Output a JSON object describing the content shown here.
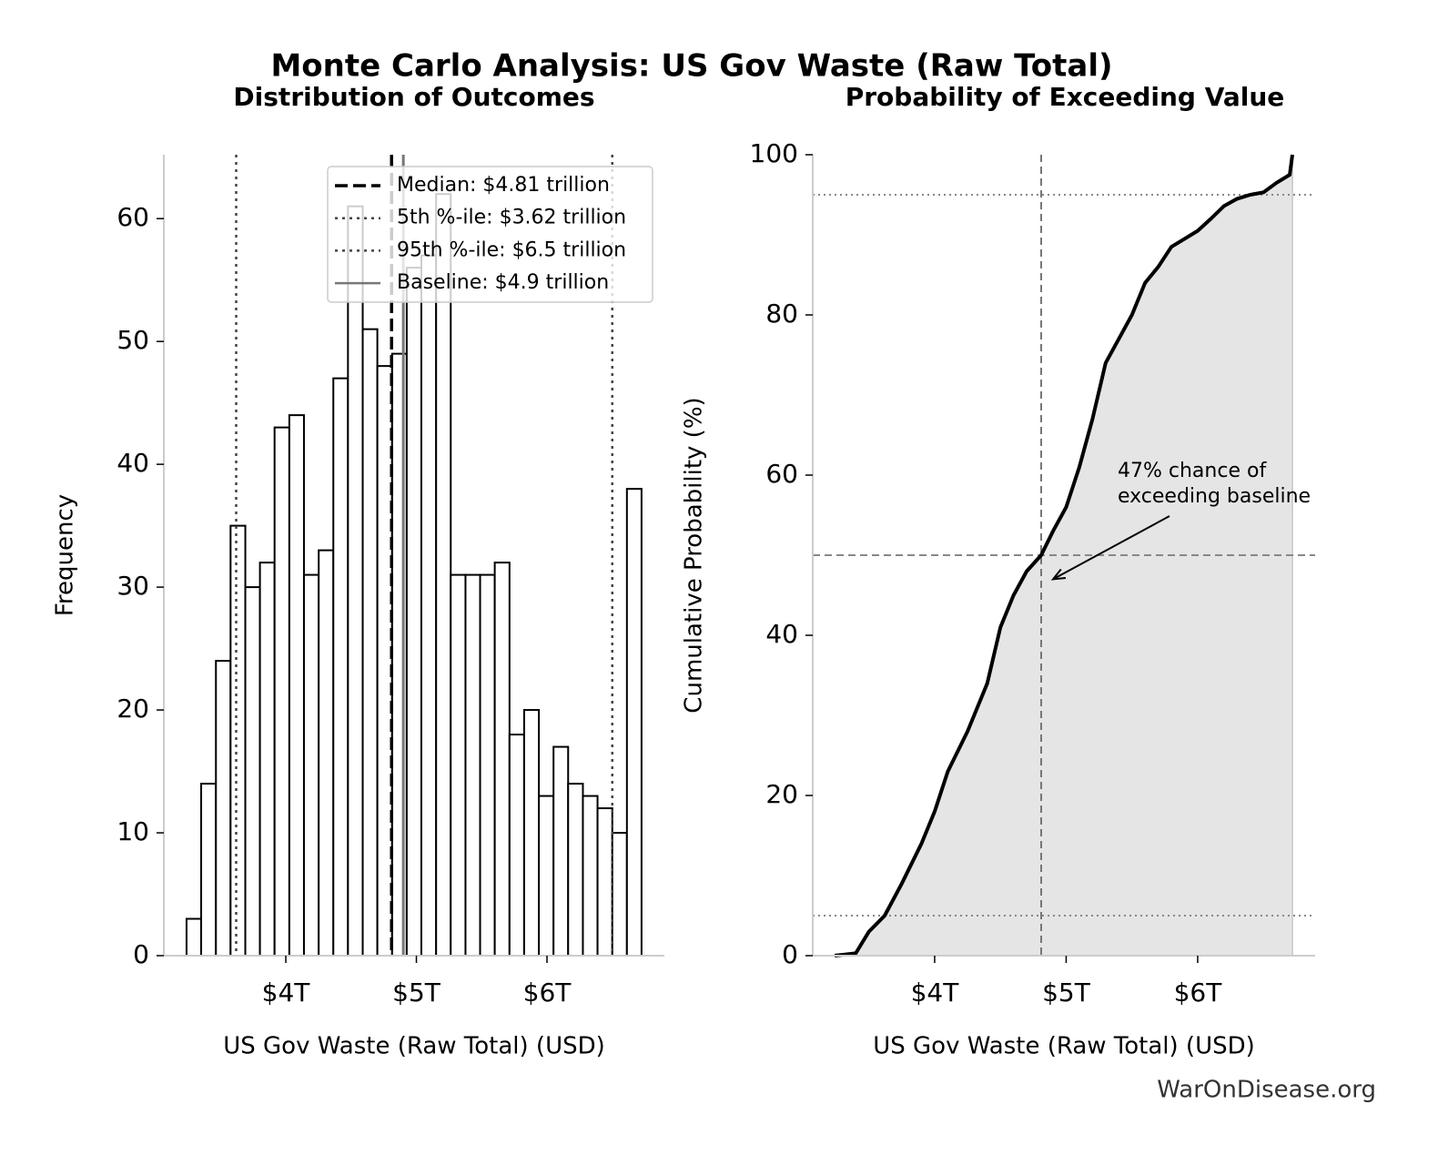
{
  "title": "Monte Carlo Analysis: US Gov Waste (Raw Total)",
  "footer": "WarOnDisease.org",
  "chart_data": [
    {
      "type": "histogram",
      "title": "Distribution of Outcomes",
      "x_label": "US Gov Waste (Raw Total) (USD)",
      "y_label": "Frequency",
      "bins": [
        3.24,
        3.352,
        3.465,
        3.577,
        3.69,
        3.802,
        3.914,
        4.027,
        4.139,
        4.252,
        4.364,
        4.476,
        4.589,
        4.701,
        4.814,
        4.926,
        5.038,
        5.151,
        5.263,
        5.376,
        5.488,
        5.6,
        5.713,
        5.825,
        5.938,
        6.05,
        6.162,
        6.275,
        6.387,
        6.5,
        6.612,
        6.724
      ],
      "values": [
        3,
        14,
        24,
        35,
        30,
        32,
        43,
        44,
        31,
        33,
        47,
        61,
        51,
        48,
        49,
        56,
        57,
        62,
        31,
        31,
        31,
        32,
        18,
        20,
        13,
        17,
        14,
        13,
        12,
        10,
        38
      ],
      "color": "#ffffff",
      "edge_color": "#000000",
      "xlim": [
        3.066,
        6.899
      ],
      "ylim": [
        0,
        65.2
      ],
      "xticks": [
        {
          "value": 4,
          "label": "$4T"
        },
        {
          "value": 5,
          "label": "$5T"
        },
        {
          "value": 6,
          "label": "$6T"
        }
      ],
      "yticks": [
        0,
        10,
        20,
        30,
        40,
        50,
        60
      ],
      "legend": "upper center",
      "reference_lines": [
        {
          "name": "Median: $4.81 trillion",
          "value": 4.81,
          "style": "dashed",
          "color": "#000000"
        },
        {
          "name": "5th %-ile: $3.62 trillion",
          "value": 3.62,
          "style": "dotted",
          "color": "#444444"
        },
        {
          "name": "95th %-ile: $6.5 trillion",
          "value": 6.5,
          "style": "dotted",
          "color": "#444444"
        },
        {
          "name": "Baseline: $4.9 trillion",
          "value": 4.9,
          "style": "solid",
          "color": "#777777"
        }
      ]
    },
    {
      "type": "line",
      "title": "Probability of Exceeding Value",
      "x_label": "US Gov Waste (Raw Total) (USD)",
      "y_label": "Cumulative Probability (%)",
      "x": [
        3.24,
        3.4,
        3.5,
        3.62,
        3.75,
        3.9,
        4.0,
        4.1,
        4.25,
        4.4,
        4.5,
        4.6,
        4.7,
        4.81,
        4.9,
        5.0,
        5.1,
        5.2,
        5.3,
        5.4,
        5.5,
        5.6,
        5.7,
        5.8,
        5.9,
        6.0,
        6.1,
        6.2,
        6.3,
        6.4,
        6.5,
        6.6,
        6.7,
        6.72
      ],
      "values": [
        0,
        0.3,
        3,
        5,
        9,
        14,
        18,
        23,
        28,
        34,
        41,
        45,
        48,
        50,
        53,
        56,
        61,
        67,
        74,
        77,
        80,
        84,
        86,
        88.5,
        89.5,
        90.5,
        92,
        93.6,
        94.5,
        95,
        95.3,
        96.5,
        97.5,
        100
      ],
      "color": "#000000",
      "fill_color": "#e5e5e5",
      "xlim": [
        3.073,
        6.893
      ],
      "ylim": [
        0,
        100
      ],
      "xticks": [
        {
          "value": 4,
          "label": "$4T"
        },
        {
          "value": 5,
          "label": "$5T"
        },
        {
          "value": 6,
          "label": "$6T"
        }
      ],
      "yticks": [
        0,
        20,
        40,
        60,
        80,
        100
      ],
      "hlines": [
        5,
        50,
        95
      ],
      "vlines": [
        4.81
      ],
      "annotation_lines": [
        "47% chance of",
        "exceeding baseline"
      ],
      "annotation_xy": [
        4.9,
        47
      ]
    }
  ]
}
